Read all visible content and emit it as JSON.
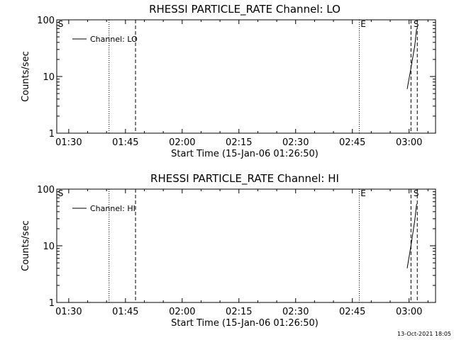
{
  "stamp": "13-Oct-2021 18:05",
  "chart_data": [
    {
      "type": "line",
      "title": "RHESSI PARTICLE_RATE Channel: LO",
      "xlabel": "Start Time (15-Jan-06 01:26:50)",
      "ylabel": "Counts/sec",
      "yscale": "log",
      "xlim": [
        "01:26:50",
        "03:07:00"
      ],
      "ylim": [
        1,
        100
      ],
      "x_ticks": [
        "01:30",
        "01:45",
        "02:00",
        "02:15",
        "02:30",
        "02:45",
        "03:00"
      ],
      "y_ticks": [
        "1",
        "10",
        "100"
      ],
      "legend": "top-left",
      "series": [
        {
          "name": "Channel: LO",
          "x": [
            "02:59:30",
            "03:00:30",
            "03:01:30",
            "03:02:00"
          ],
          "y": [
            6,
            14,
            35,
            70
          ]
        }
      ],
      "vlines": [
        {
          "x": "01:40:40",
          "style": "dotted"
        },
        {
          "x": "01:47:40",
          "style": "dashed"
        },
        {
          "x": "02:46:50",
          "style": "dotted"
        },
        {
          "x": "03:00:30",
          "style": "dashed"
        },
        {
          "x": "03:02:10",
          "style": "dashed"
        }
      ],
      "markers": [
        {
          "x": "01:27:10",
          "label": "S"
        },
        {
          "x": "02:47:10",
          "label": "E"
        },
        {
          "x": "03:01:10",
          "label": "S"
        }
      ]
    },
    {
      "type": "line",
      "title": "RHESSI PARTICLE_RATE Channel: HI",
      "xlabel": "Start Time (15-Jan-06 01:26:50)",
      "ylabel": "Counts/sec",
      "yscale": "log",
      "xlim": [
        "01:26:50",
        "03:07:00"
      ],
      "ylim": [
        1,
        100
      ],
      "x_ticks": [
        "01:30",
        "01:45",
        "02:00",
        "02:15",
        "02:30",
        "02:45",
        "03:00"
      ],
      "y_ticks": [
        "1",
        "10",
        "100"
      ],
      "legend": "top-left",
      "series": [
        {
          "name": "Channel: HI",
          "x": [
            "02:59:30",
            "03:00:30",
            "03:01:30",
            "03:02:00"
          ],
          "y": [
            4,
            10,
            28,
            55
          ]
        }
      ],
      "vlines": [
        {
          "x": "01:40:40",
          "style": "dotted"
        },
        {
          "x": "01:47:40",
          "style": "dashed"
        },
        {
          "x": "02:46:50",
          "style": "dotted"
        },
        {
          "x": "03:00:30",
          "style": "dashed"
        },
        {
          "x": "03:02:10",
          "style": "dashed"
        }
      ],
      "markers": [
        {
          "x": "01:27:10",
          "label": "S"
        },
        {
          "x": "02:47:10",
          "label": "E"
        },
        {
          "x": "03:01:10",
          "label": "S"
        }
      ]
    }
  ]
}
